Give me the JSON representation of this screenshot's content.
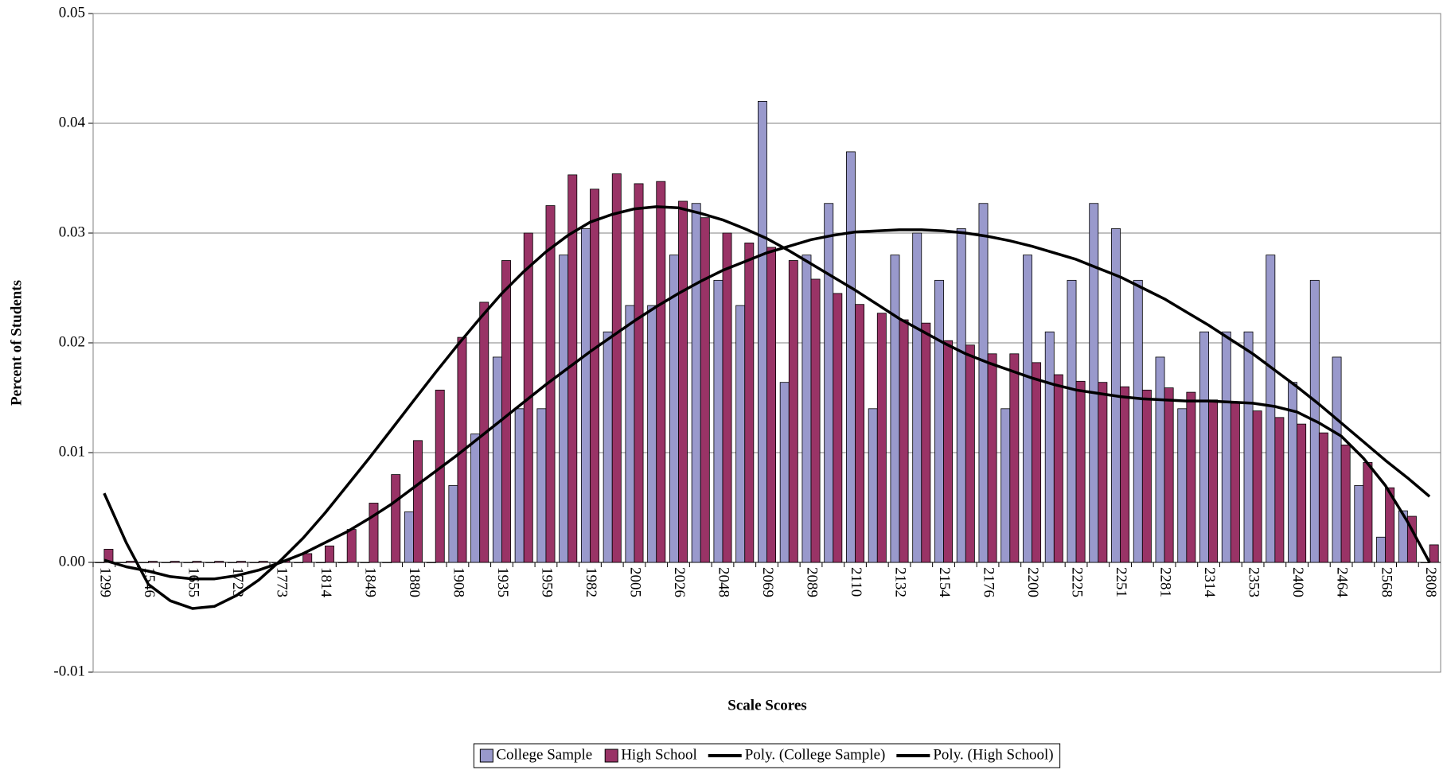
{
  "chart_data": {
    "type": "bar",
    "x_label": "Scale Scores",
    "y_label": "Percent of Students",
    "categories": [
      "1299",
      null,
      "1546",
      null,
      "1655",
      null,
      "1723",
      null,
      "1773",
      null,
      "1814",
      null,
      "1849",
      null,
      "1880",
      null,
      "1908",
      null,
      "1935",
      null,
      "1959",
      null,
      "1982",
      null,
      "2005",
      null,
      "2026",
      null,
      "2048",
      null,
      "2069",
      null,
      "2089",
      null,
      "2110",
      null,
      "2132",
      null,
      "2154",
      null,
      "2176",
      null,
      "2200",
      null,
      "2225",
      null,
      "2251",
      null,
      "2281",
      null,
      "2314",
      null,
      "2353",
      null,
      "2400",
      null,
      "2464",
      null,
      "2568",
      null,
      "2808"
    ],
    "ylim": [
      -0.01,
      0.05
    ],
    "yticks": [
      -0.01,
      {
        "value": 0,
        "label": "0.00"
      },
      0.01,
      0.02,
      0.03,
      0.04,
      0.05
    ],
    "grid": true,
    "legend": "bottom",
    "series": [
      {
        "name": "College Sample",
        "type": "bar",
        "color": "#9999cc",
        "values": [
          0,
          0,
          0,
          0,
          0,
          0,
          0,
          0,
          0,
          0,
          0,
          0,
          0,
          0,
          0.0046,
          0,
          0.007,
          0.0117,
          0.0187,
          0.014,
          0.014,
          0.028,
          0.0304,
          0.021,
          0.0234,
          0.0234,
          0.028,
          0.0327,
          0.0257,
          0.0234,
          0.042,
          0.0164,
          0.028,
          0.0327,
          0.0374,
          0.014,
          0.028,
          0.03,
          0.0257,
          0.0304,
          0.0327,
          0.014,
          0.028,
          0.021,
          0.0257,
          0.0327,
          0.0304,
          0.0257,
          0.0187,
          0.014,
          0.021,
          0.021,
          0.021,
          0.028,
          0.0164,
          0.0257,
          0.0187,
          0.007,
          0.0023,
          0.0047,
          0
        ]
      },
      {
        "name": "High School",
        "type": "bar",
        "color": "#993366",
        "values": [
          0.0012,
          0.0001,
          0.0001,
          0.0001,
          0.0001,
          0.0001,
          0.0001,
          0.0001,
          0.0002,
          0.0008,
          0.0015,
          0.003,
          0.0054,
          0.008,
          0.0111,
          0.0157,
          0.0205,
          0.0237,
          0.0275,
          0.03,
          0.0325,
          0.0353,
          0.034,
          0.0354,
          0.0345,
          0.0347,
          0.0329,
          0.0314,
          0.03,
          0.0291,
          0.0287,
          0.0275,
          0.0258,
          0.0245,
          0.0235,
          0.0227,
          0.0221,
          0.0218,
          0.0202,
          0.0198,
          0.019,
          0.019,
          0.0182,
          0.0171,
          0.0165,
          0.0164,
          0.016,
          0.0157,
          0.0159,
          0.0155,
          0.0148,
          0.0145,
          0.0138,
          0.0132,
          0.0126,
          0.0118,
          0.0107,
          0.0091,
          0.0068,
          0.0042,
          0.0016
        ]
      },
      {
        "name": "Poly. (College Sample)",
        "type": "line",
        "color": "#000000",
        "values": [
          0.0002,
          -0.0004,
          -0.0008,
          -0.0013,
          -0.0015,
          -0.0015,
          -0.0012,
          -0.0007,
          0,
          0.0008,
          0.0018,
          0.0028,
          0.004,
          0.0053,
          0.0068,
          0.0083,
          0.0098,
          0.0114,
          0.013,
          0.0146,
          0.0162,
          0.0177,
          0.0192,
          0.0206,
          0.022,
          0.0233,
          0.0245,
          0.0256,
          0.0266,
          0.0274,
          0.0282,
          0.0288,
          0.0294,
          0.0298,
          0.0301,
          0.0302,
          0.0303,
          0.0303,
          0.0302,
          0.03,
          0.0297,
          0.0293,
          0.0288,
          0.0282,
          0.0276,
          0.0268,
          0.026,
          0.025,
          0.024,
          0.0228,
          0.0216,
          0.0203,
          0.019,
          0.0175,
          0.016,
          0.0144,
          0.0127,
          0.011,
          0.0093,
          0.0077,
          0.006
        ]
      },
      {
        "name": "Poly. (High School)",
        "type": "line",
        "color": "#000000",
        "values": [
          0.0063,
          0.0018,
          -0.002,
          -0.0035,
          -0.0042,
          -0.004,
          -0.003,
          -0.0016,
          0.0002,
          0.0022,
          0.0045,
          0.007,
          0.0095,
          0.0121,
          0.0147,
          0.0173,
          0.0198,
          0.0222,
          0.0245,
          0.0265,
          0.0283,
          0.0298,
          0.031,
          0.0317,
          0.0322,
          0.0324,
          0.0323,
          0.0318,
          0.0312,
          0.0304,
          0.0295,
          0.0284,
          0.0272,
          0.026,
          0.0248,
          0.0235,
          0.0222,
          0.0211,
          0.02,
          0.019,
          0.0182,
          0.0175,
          0.0168,
          0.0162,
          0.0157,
          0.0154,
          0.0151,
          0.0149,
          0.0148,
          0.0147,
          0.0147,
          0.0146,
          0.0145,
          0.0142,
          0.0137,
          0.0127,
          0.0115,
          0.0095,
          0.007,
          0.0037,
          0
        ]
      }
    ]
  }
}
